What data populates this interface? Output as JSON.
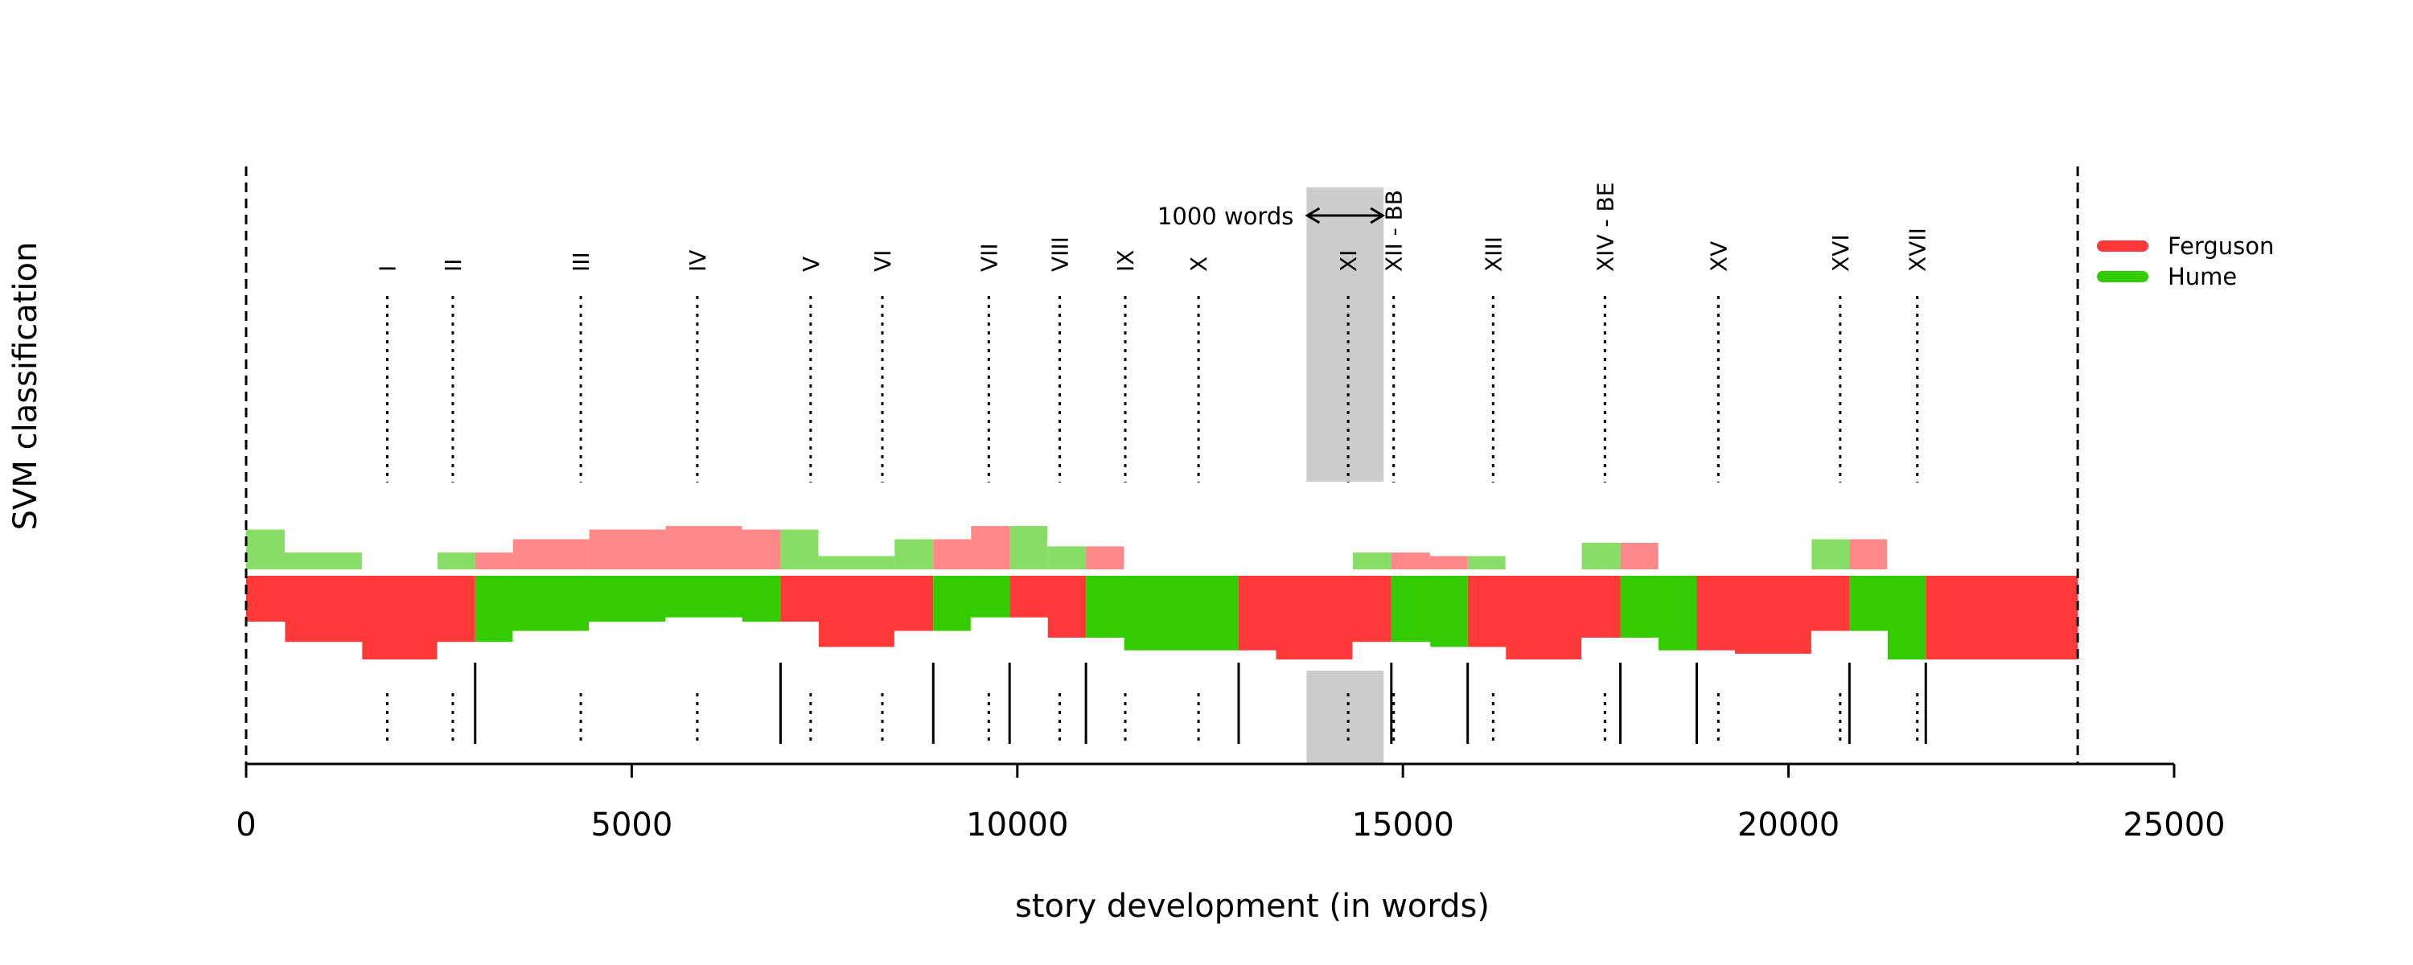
{
  "chart_data": {
    "type": "bar",
    "xlabel": "story development (in words)",
    "ylabel": "SVM classification",
    "xlim": [
      0,
      25000
    ],
    "xticks": [
      0,
      5000,
      10000,
      15000,
      20000,
      25000
    ],
    "xtick_labels": [
      "0",
      "5000",
      "10000",
      "15000",
      "20000",
      "25000"
    ],
    "text_end": 23750,
    "legend": {
      "placement": "right",
      "entries": [
        {
          "label": "Ferguson",
          "color": "#ff3838"
        },
        {
          "label": "Hume",
          "color": "#33cc00"
        }
      ]
    },
    "annotation": {
      "label": "1000 words",
      "from": 13750,
      "to": 14750
    },
    "chapters": [
      {
        "label": "I",
        "x": 1830
      },
      {
        "label": "II",
        "x": 2680
      },
      {
        "label": "III",
        "x": 4340
      },
      {
        "label": "IV",
        "x": 5850
      },
      {
        "label": "V",
        "x": 7320
      },
      {
        "label": "VI",
        "x": 8250
      },
      {
        "label": "VII",
        "x": 9630
      },
      {
        "label": "VIII",
        "x": 10550
      },
      {
        "label": "IX",
        "x": 11400
      },
      {
        "label": "X",
        "x": 12350
      },
      {
        "label": "XI",
        "x": 14290
      },
      {
        "label": "XII - BB",
        "x": 14880
      },
      {
        "label": "XIII",
        "x": 16170
      },
      {
        "label": "XIV - BE",
        "x": 17620
      },
      {
        "label": "XV",
        "x": 19090
      },
      {
        "label": "XVI",
        "x": 20670
      },
      {
        "label": "XVII",
        "x": 21670
      }
    ],
    "window_segments": [
      {
        "start": 0,
        "end": 2970,
        "author": "Ferguson"
      },
      {
        "start": 2970,
        "end": 6930,
        "author": "Hume"
      },
      {
        "start": 6930,
        "end": 8910,
        "author": "Ferguson"
      },
      {
        "start": 8910,
        "end": 9900,
        "author": "Hume"
      },
      {
        "start": 9900,
        "end": 10890,
        "author": "Ferguson"
      },
      {
        "start": 10890,
        "end": 12870,
        "author": "Hume"
      },
      {
        "start": 12870,
        "end": 14850,
        "author": "Ferguson"
      },
      {
        "start": 14850,
        "end": 15840,
        "author": "Hume"
      },
      {
        "start": 15840,
        "end": 17820,
        "author": "Ferguson"
      },
      {
        "start": 17820,
        "end": 18810,
        "author": "Hume"
      },
      {
        "start": 18810,
        "end": 20790,
        "author": "Ferguson"
      },
      {
        "start": 20790,
        "end": 21780,
        "author": "Hume"
      },
      {
        "start": 21780,
        "end": 23750,
        "author": "Ferguson"
      }
    ],
    "upper_bars": [
      {
        "start": 0,
        "end": 500,
        "author": "Hume",
        "value": 0.45
      },
      {
        "start": 500,
        "end": 1500,
        "author": "Hume",
        "value": 0.19
      },
      {
        "start": 2480,
        "end": 2970,
        "author": "Hume",
        "value": 0.19
      },
      {
        "start": 2970,
        "end": 3460,
        "author": "Ferguson",
        "value": 0.19
      },
      {
        "start": 3460,
        "end": 4450,
        "author": "Ferguson",
        "value": 0.34
      },
      {
        "start": 4450,
        "end": 5440,
        "author": "Ferguson",
        "value": 0.45
      },
      {
        "start": 5440,
        "end": 6430,
        "author": "Ferguson",
        "value": 0.49
      },
      {
        "start": 6430,
        "end": 6930,
        "author": "Ferguson",
        "value": 0.45
      },
      {
        "start": 6930,
        "end": 7420,
        "author": "Hume",
        "value": 0.45
      },
      {
        "start": 7420,
        "end": 8410,
        "author": "Hume",
        "value": 0.15
      },
      {
        "start": 8410,
        "end": 8910,
        "author": "Hume",
        "value": 0.34
      },
      {
        "start": 8910,
        "end": 9400,
        "author": "Ferguson",
        "value": 0.34
      },
      {
        "start": 9400,
        "end": 9900,
        "author": "Ferguson",
        "value": 0.49
      },
      {
        "start": 9900,
        "end": 10390,
        "author": "Hume",
        "value": 0.49
      },
      {
        "start": 10390,
        "end": 10890,
        "author": "Hume",
        "value": 0.26
      },
      {
        "start": 10890,
        "end": 11380,
        "author": "Ferguson",
        "value": 0.26
      },
      {
        "start": 14350,
        "end": 14850,
        "author": "Hume",
        "value": 0.19
      },
      {
        "start": 14850,
        "end": 15350,
        "author": "Ferguson",
        "value": 0.19
      },
      {
        "start": 15350,
        "end": 15840,
        "author": "Ferguson",
        "value": 0.15
      },
      {
        "start": 15840,
        "end": 16330,
        "author": "Hume",
        "value": 0.15
      },
      {
        "start": 17320,
        "end": 17820,
        "author": "Hume",
        "value": 0.3
      },
      {
        "start": 17820,
        "end": 18310,
        "author": "Ferguson",
        "value": 0.3
      },
      {
        "start": 20300,
        "end": 20790,
        "author": "Hume",
        "value": 0.34
      },
      {
        "start": 20790,
        "end": 21280,
        "author": "Ferguson",
        "value": 0.34
      }
    ],
    "lower_extent": [
      {
        "start": 0,
        "end": 500,
        "value": 0.0
      },
      {
        "start": 500,
        "end": 1500,
        "value": 0.24
      },
      {
        "start": 1500,
        "end": 2480,
        "value": 0.45
      },
      {
        "start": 2480,
        "end": 3460,
        "value": 0.24
      },
      {
        "start": 3460,
        "end": 4450,
        "value": 0.11
      },
      {
        "start": 4450,
        "end": 5440,
        "value": 0.0
      },
      {
        "start": 5440,
        "end": 6430,
        "value": -0.05
      },
      {
        "start": 6430,
        "end": 7420,
        "value": 0.0
      },
      {
        "start": 7420,
        "end": 8410,
        "value": 0.3
      },
      {
        "start": 8410,
        "end": 9400,
        "value": 0.11
      },
      {
        "start": 9400,
        "end": 10390,
        "value": -0.05
      },
      {
        "start": 10390,
        "end": 11380,
        "value": 0.19
      },
      {
        "start": 11380,
        "end": 13350,
        "value": 0.34
      },
      {
        "start": 13350,
        "end": 14350,
        "value": 0.45
      },
      {
        "start": 14350,
        "end": 15350,
        "value": 0.24
      },
      {
        "start": 15350,
        "end": 16330,
        "value": 0.3
      },
      {
        "start": 16330,
        "end": 17320,
        "value": 0.45
      },
      {
        "start": 17320,
        "end": 18310,
        "value": 0.19
      },
      {
        "start": 18310,
        "end": 19300,
        "value": 0.34
      },
      {
        "start": 19300,
        "end": 20300,
        "value": 0.38
      },
      {
        "start": 20300,
        "end": 21280,
        "value": 0.11
      },
      {
        "start": 21280,
        "end": 21780,
        "value": 0.45
      },
      {
        "start": 21780,
        "end": 23750,
        "value": 0.45
      }
    ],
    "grid": false
  }
}
